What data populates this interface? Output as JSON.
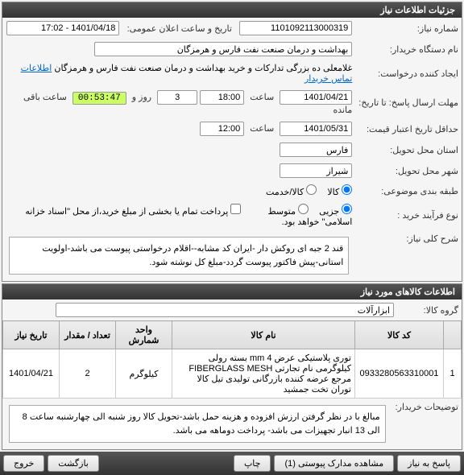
{
  "panel1": {
    "title": "جزئیات اطلاعات نیاز"
  },
  "f": {
    "reqno_lbl": "شماره نیاز:",
    "reqno": "1101092113000319",
    "pubdate_lbl": "تاریخ و ساعت اعلان عمومی:",
    "pubdate": "1401/04/18 - 17:02",
    "org_lbl": "نام دستگاه خریدار:",
    "org": "بهداشت و درمان صنعت نفت فارس و هرمزگان",
    "creator_lbl": "ایجاد کننده درخواست:",
    "creator": "غلامعلی ده بزرگی تدارکات و خرید بهداشت و درمان صنعت نفت فارس و هرمزگان",
    "contact_link": "اطلاعات تماس خریدار",
    "deadline_lbl": "مهلت ارسال پاسخ: تا تاریخ:",
    "deadline_date": "1401/04/21",
    "hour_lbl": "ساعت",
    "deadline_time": "18:00",
    "days_left": "3",
    "day_and": "روز و",
    "timer": "00:53:47",
    "remain": "ساعت باقی مانده",
    "valid_lbl": "حداقل تاریخ اعتبار قیمت:",
    "valid_date": "1401/05/31",
    "valid_time": "12:00",
    "province_lbl": "استان محل تحویل:",
    "province": "فارس",
    "city_lbl": "شهر محل تحویل:",
    "city": "شیراز",
    "subject_lbl": "طبقه بندی موضوعی:",
    "subject_goods": "کالا",
    "subject_service": "کالا/خدمت",
    "buytype_lbl": "نوع فرآیند خرید :",
    "bt_minor": "جزیی",
    "bt_medium": "متوسط",
    "partial_pay": "پرداخت تمام یا بخشی از مبلغ خرید،از محل \"اسناد خزانه اسلامی\" خواهد بود.",
    "keydesc_lbl": "شرح کلی نیاز:",
    "keydesc": "قند 2 جبه ای روکش دار -ایران کد مشابه--اقلام درخواستی پیوست می باشد-اولویت استانی-پیش فاکتور پیوست گردد-مبلغ کل نوشته شود."
  },
  "panel2": {
    "title": "اطلاعات کالاهای مورد نیاز"
  },
  "g": {
    "group_lbl": "گروه کالا:",
    "group": "ابزارآلات",
    "cols": {
      "idx": "",
      "code": "کد کالا",
      "name": "نام کالا",
      "unit": "واحد شمارش",
      "qty": "تعداد / مقدار",
      "date": "تاریخ نیاز"
    },
    "rows": [
      {
        "idx": "1",
        "code": "0933280563310001",
        "name": "توری پلاستیکی عرض 4 mm بسته رولی کیلوگرمی نام تجارتی FIBERGLASS MESH مرجع عرضه کننده بازرگانی تولیدی تیل کالا توران تخت جمشید",
        "unit": "کیلوگرم",
        "qty": "2",
        "date": "1401/04/21"
      }
    ],
    "buyer_note_lbl": "توضیحات خریدار:",
    "buyer_note": "مبالغ با در نظر گرفتن ارزش افزوده و هزینه حمل باشد-تحویل کالا روز شنبه الی چهارشنبه ساعت 8 الی 13 انبار تجهیزات می باشد- پرداخت دوماهه می باشد."
  },
  "btns": {
    "reply": "پاسخ به نیاز",
    "attach": "مشاهده مدارک پیوستی (1)",
    "print": "چاپ",
    "back": "بازگشت",
    "exit": "خروج"
  }
}
